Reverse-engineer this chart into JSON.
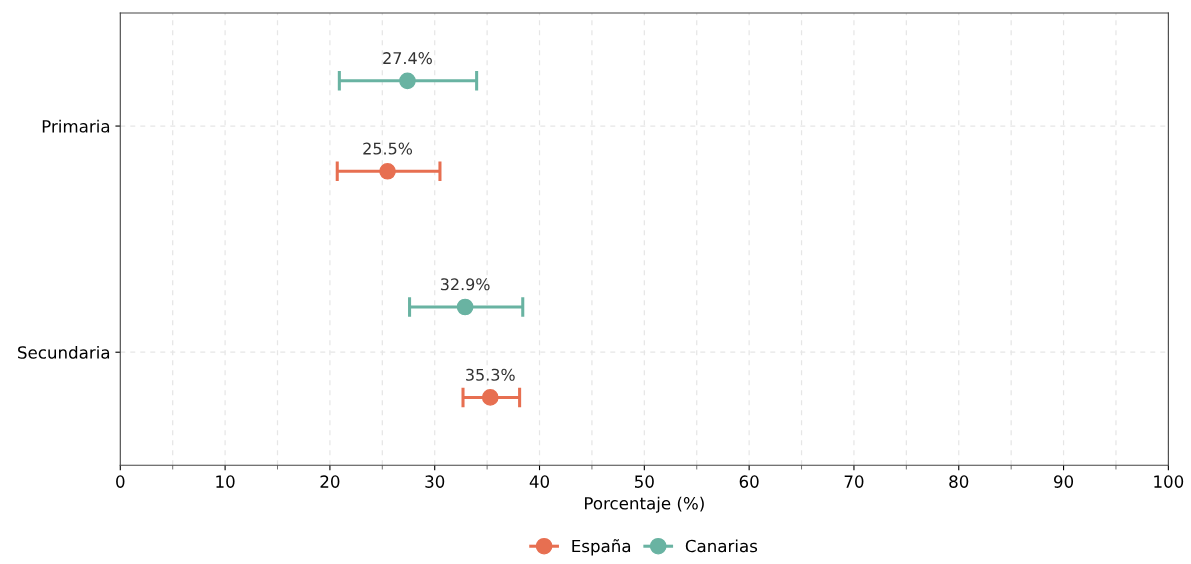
{
  "chart_data": {
    "type": "scatter",
    "orientation": "horizontal",
    "xlabel": "Porcentaje (%)",
    "categories": [
      "Primaria",
      "Secundaria"
    ],
    "series": [
      {
        "name": "Canarias",
        "color": "#69b3a2",
        "values": [
          27.4,
          32.9
        ],
        "errors": [
          [
            20.9,
            34.0
          ],
          [
            27.6,
            38.4
          ]
        ],
        "value_labels": [
          "27.4%",
          "32.9%"
        ]
      },
      {
        "name": "España",
        "color": "#e76f51",
        "values": [
          25.5,
          35.3
        ],
        "errors": [
          [
            20.7,
            30.5
          ],
          [
            32.7,
            38.1
          ]
        ],
        "value_labels": [
          "25.5%",
          "35.3%"
        ]
      }
    ],
    "xlim": [
      0,
      100
    ],
    "xticks": [
      0,
      {
        "value": 5,
        "label": null
      },
      10,
      {
        "value": 15,
        "label": null
      },
      20,
      {
        "value": 25,
        "label": null
      },
      30,
      {
        "value": 35,
        "label": null
      },
      40,
      {
        "value": 45,
        "label": null
      },
      50,
      {
        "value": 55,
        "label": null
      },
      60,
      {
        "value": 65,
        "label": null
      },
      70,
      {
        "value": 75,
        "label": null
      },
      80,
      {
        "value": 85,
        "label": null
      },
      90,
      {
        "value": 95,
        "label": null
      },
      100
    ],
    "grid": true,
    "legend": "bottom",
    "marker": "circle"
  }
}
